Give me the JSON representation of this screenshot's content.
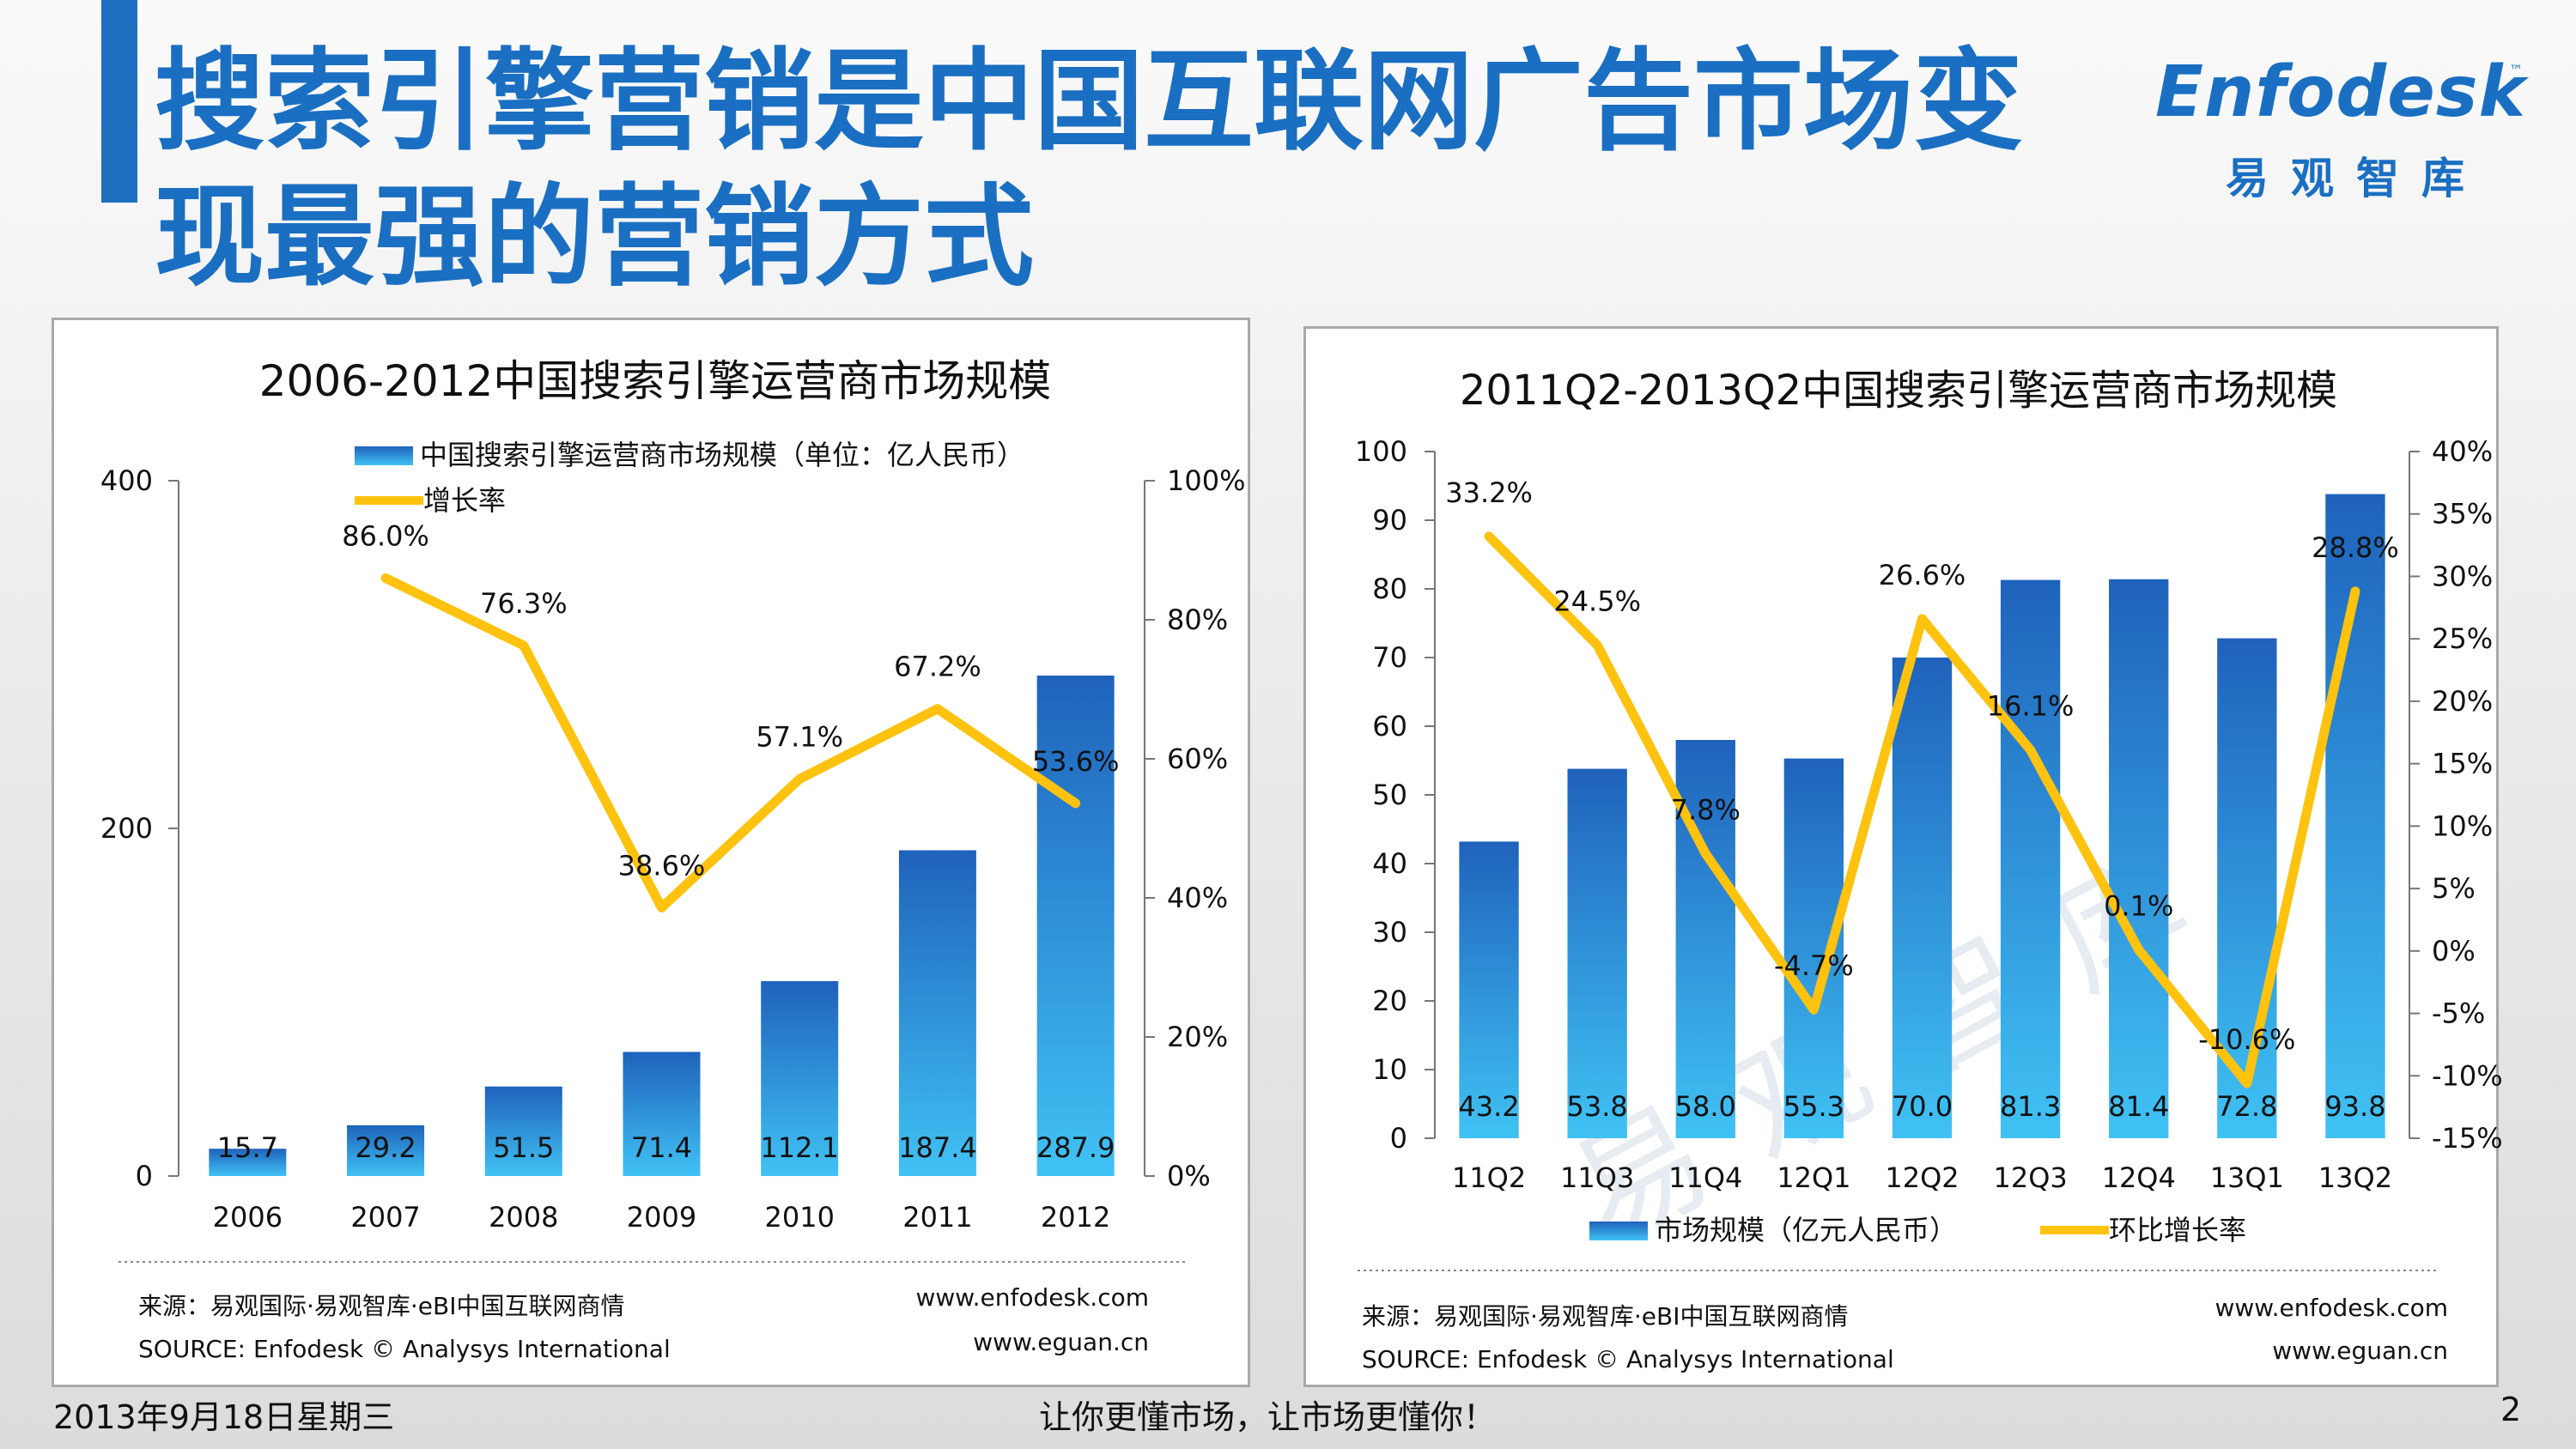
{
  "slide": {
    "title_line1": "搜索引擎营销是中国互联网广告市场变",
    "title_line2": "现最强的营销方式",
    "logo_text": "Enfodesk",
    "logo_tm": "™",
    "logo_cn": "易观智库",
    "footer_date": "2013年9月18日星期三",
    "footer_slogan": "让你更懂市场，让市场更懂你！",
    "page_number": "2"
  },
  "chart_data": [
    {
      "type": "bar",
      "title": "2006-2012中国搜索引擎运营商市场规模",
      "categories": [
        "2006",
        "2007",
        "2008",
        "2009",
        "2010",
        "2011",
        "2012"
      ],
      "series": [
        {
          "name": "中国搜索引擎运营商市场规模（单位：亿人民币）",
          "type": "bar",
          "axis": "left",
          "values": [
            15.7,
            29.2,
            51.5,
            71.4,
            112.1,
            187.4,
            287.9
          ],
          "labels": [
            "15.7",
            "29.2",
            "51.5",
            "71.4",
            "112.1",
            "187.4",
            "287.9"
          ]
        },
        {
          "name": "增长率",
          "type": "line",
          "axis": "right",
          "values": [
            null,
            86.0,
            76.3,
            38.6,
            57.1,
            67.2,
            53.6
          ],
          "labels": [
            "",
            "86.0%",
            "76.3%",
            "38.6%",
            "57.1%",
            "67.2%",
            "53.6%"
          ]
        }
      ],
      "y_left": {
        "min": 0,
        "max": 400,
        "ticks": [
          "0",
          "200",
          "400"
        ]
      },
      "y_right": {
        "min": 0,
        "max": 100,
        "ticks": [
          "0%",
          "20%",
          "40%",
          "60%",
          "80%",
          "100%"
        ]
      },
      "legend_position": "top",
      "source_line1": "来源：易观国际·易观智库·eBI中国互联网商情",
      "source_line2": "SOURCE: Enfodesk © Analysys International",
      "website1": "www.enfodesk.com",
      "website2": "www.eguan.cn",
      "colors": {
        "bar_top": "#1f62bc",
        "bar_bottom": "#40c2f4",
        "line": "#ffc20e"
      }
    },
    {
      "type": "bar",
      "title": "2011Q2-2013Q2中国搜索引擎运营商市场规模",
      "categories": [
        "11Q2",
        "11Q3",
        "11Q4",
        "12Q1",
        "12Q2",
        "12Q3",
        "12Q4",
        "13Q1",
        "13Q2"
      ],
      "series": [
        {
          "name": "市场规模（亿元人民币）",
          "type": "bar",
          "axis": "left",
          "values": [
            43.2,
            53.8,
            58.0,
            55.3,
            70.0,
            81.3,
            81.4,
            72.8,
            93.8
          ],
          "labels": [
            "43.2",
            "53.8",
            "58.0",
            "55.3",
            "70.0",
            "81.3",
            "81.4",
            "72.8",
            "93.8"
          ]
        },
        {
          "name": "环比增长率",
          "type": "line",
          "axis": "right",
          "values": [
            33.2,
            24.5,
            7.8,
            -4.7,
            26.6,
            16.1,
            0.1,
            -10.6,
            28.8
          ],
          "labels": [
            "33.2%",
            "24.5%",
            "7.8%",
            "-4.7%",
            "26.6%",
            "16.1%",
            "0.1%",
            "-10.6%",
            "28.8%"
          ]
        }
      ],
      "y_left": {
        "min": 0,
        "max": 100,
        "ticks": [
          "0",
          "10",
          "20",
          "30",
          "40",
          "50",
          "60",
          "70",
          "80",
          "90",
          "100"
        ]
      },
      "y_right": {
        "min": -15,
        "max": 40,
        "ticks": [
          "-15%",
          "-10%",
          "-5%",
          "0%",
          "5%",
          "10%",
          "15%",
          "20%",
          "25%",
          "30%",
          "35%",
          "40%"
        ]
      },
      "legend_position": "bottom",
      "source_line1": "来源：易观国际·易观智库·eBI中国互联网商情",
      "source_line2": "SOURCE: Enfodesk © Analysys International",
      "website1": "www.enfodesk.com",
      "website2": "www.eguan.cn",
      "watermark": "易观智库",
      "colors": {
        "bar_top": "#1f62bc",
        "bar_bottom": "#40c2f4",
        "line": "#ffc20e"
      }
    }
  ]
}
